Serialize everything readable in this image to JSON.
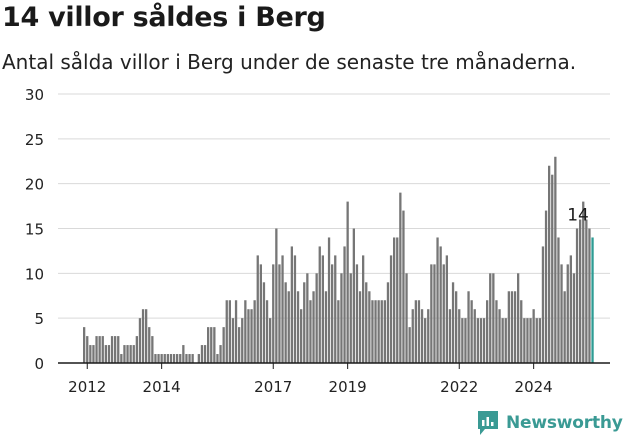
{
  "title": "14 villor såldes i Berg",
  "subtitle": "Antal sålda villor i Berg under de senaste tre månaderna.",
  "brand": "Newsworthy",
  "colors": {
    "bar": "#767676",
    "highlight": "#2e9c94",
    "grid": "#d9d9d9",
    "axis": "#1a1a1a",
    "brand": "#3a9a94"
  },
  "chart_data": {
    "type": "bar",
    "ylim": [
      0,
      30
    ],
    "yticks": [
      0,
      5,
      10,
      15,
      20,
      25,
      30
    ],
    "xticks": [
      {
        "label": "2012",
        "index": 1
      },
      {
        "label": "2014",
        "index": 25
      },
      {
        "label": "2017",
        "index": 61
      },
      {
        "label": "2019",
        "index": 85
      },
      {
        "label": "2022",
        "index": 121
      },
      {
        "label": "2024",
        "index": 145
      }
    ],
    "grid": true,
    "values": [
      4,
      3,
      2,
      2,
      3,
      3,
      3,
      2,
      2,
      3,
      3,
      3,
      1,
      2,
      2,
      2,
      2,
      3,
      5,
      6,
      6,
      4,
      3,
      1,
      1,
      1,
      1,
      1,
      1,
      1,
      1,
      1,
      2,
      1,
      1,
      1,
      0,
      1,
      2,
      2,
      4,
      4,
      4,
      1,
      2,
      4,
      7,
      7,
      5,
      7,
      4,
      5,
      7,
      6,
      6,
      7,
      12,
      11,
      9,
      7,
      5,
      11,
      15,
      11,
      12,
      9,
      8,
      13,
      12,
      8,
      6,
      9,
      10,
      7,
      8,
      10,
      13,
      12,
      8,
      14,
      11,
      12,
      7,
      10,
      13,
      18,
      10,
      15,
      11,
      8,
      12,
      9,
      8,
      7,
      7,
      7,
      7,
      7,
      9,
      12,
      14,
      14,
      19,
      17,
      10,
      4,
      6,
      7,
      7,
      6,
      5,
      6,
      11,
      11,
      14,
      13,
      11,
      12,
      6,
      9,
      8,
      6,
      5,
      5,
      8,
      7,
      6,
      5,
      5,
      5,
      7,
      10,
      10,
      7,
      6,
      5,
      5,
      8,
      8,
      8,
      10,
      7,
      5,
      5,
      5,
      6,
      5,
      5,
      13,
      17,
      22,
      21,
      23,
      14,
      11,
      8,
      11,
      12,
      10,
      15,
      16,
      18,
      16,
      15,
      14
    ],
    "highlight_last": true,
    "annotations": [
      {
        "text": "14",
        "index": 159
      }
    ]
  }
}
